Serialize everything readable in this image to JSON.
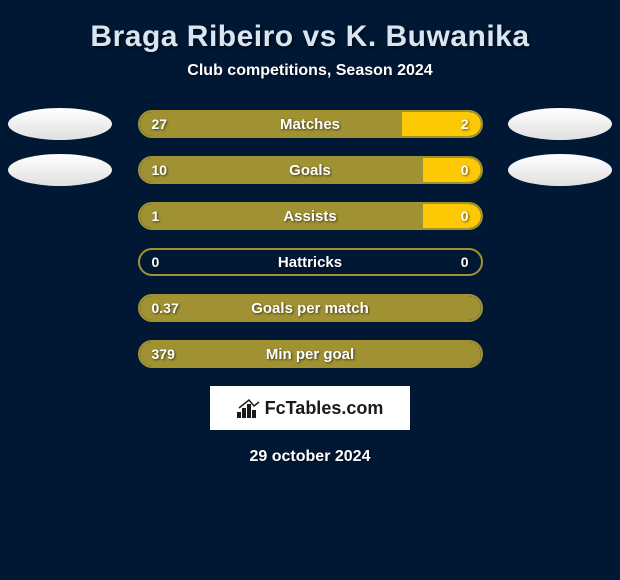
{
  "header": {
    "title": "Braga Ribeiro vs K. Buwanika",
    "subtitle": "Club competitions, Season 2024"
  },
  "colors": {
    "background": "#001834",
    "bar_border": "#a09232",
    "bar_left_fill": "#a09232",
    "bar_right_fill": "#fdc804",
    "text": "#ffffff",
    "title_text": "#d9e5f0"
  },
  "stats": [
    {
      "label": "Matches",
      "left_value": "27",
      "right_value": "2",
      "left_pct": 77,
      "right_pct": 23,
      "show_avatar": true
    },
    {
      "label": "Goals",
      "left_value": "10",
      "right_value": "0",
      "left_pct": 83,
      "right_pct": 17,
      "show_avatar": true
    },
    {
      "label": "Assists",
      "left_value": "1",
      "right_value": "0",
      "left_pct": 83,
      "right_pct": 17,
      "show_avatar": false
    },
    {
      "label": "Hattricks",
      "left_value": "0",
      "right_value": "0",
      "left_pct": 0,
      "right_pct": 0,
      "show_avatar": false
    },
    {
      "label": "Goals per match",
      "left_value": "0.37",
      "right_value": "",
      "left_pct": 100,
      "right_pct": 0,
      "show_avatar": false,
      "full_fill": true
    },
    {
      "label": "Min per goal",
      "left_value": "379",
      "right_value": "",
      "left_pct": 100,
      "right_pct": 0,
      "show_avatar": false,
      "full_fill": true
    }
  ],
  "footer": {
    "logo_text": "FcTables.com",
    "date": "29 october 2024"
  }
}
